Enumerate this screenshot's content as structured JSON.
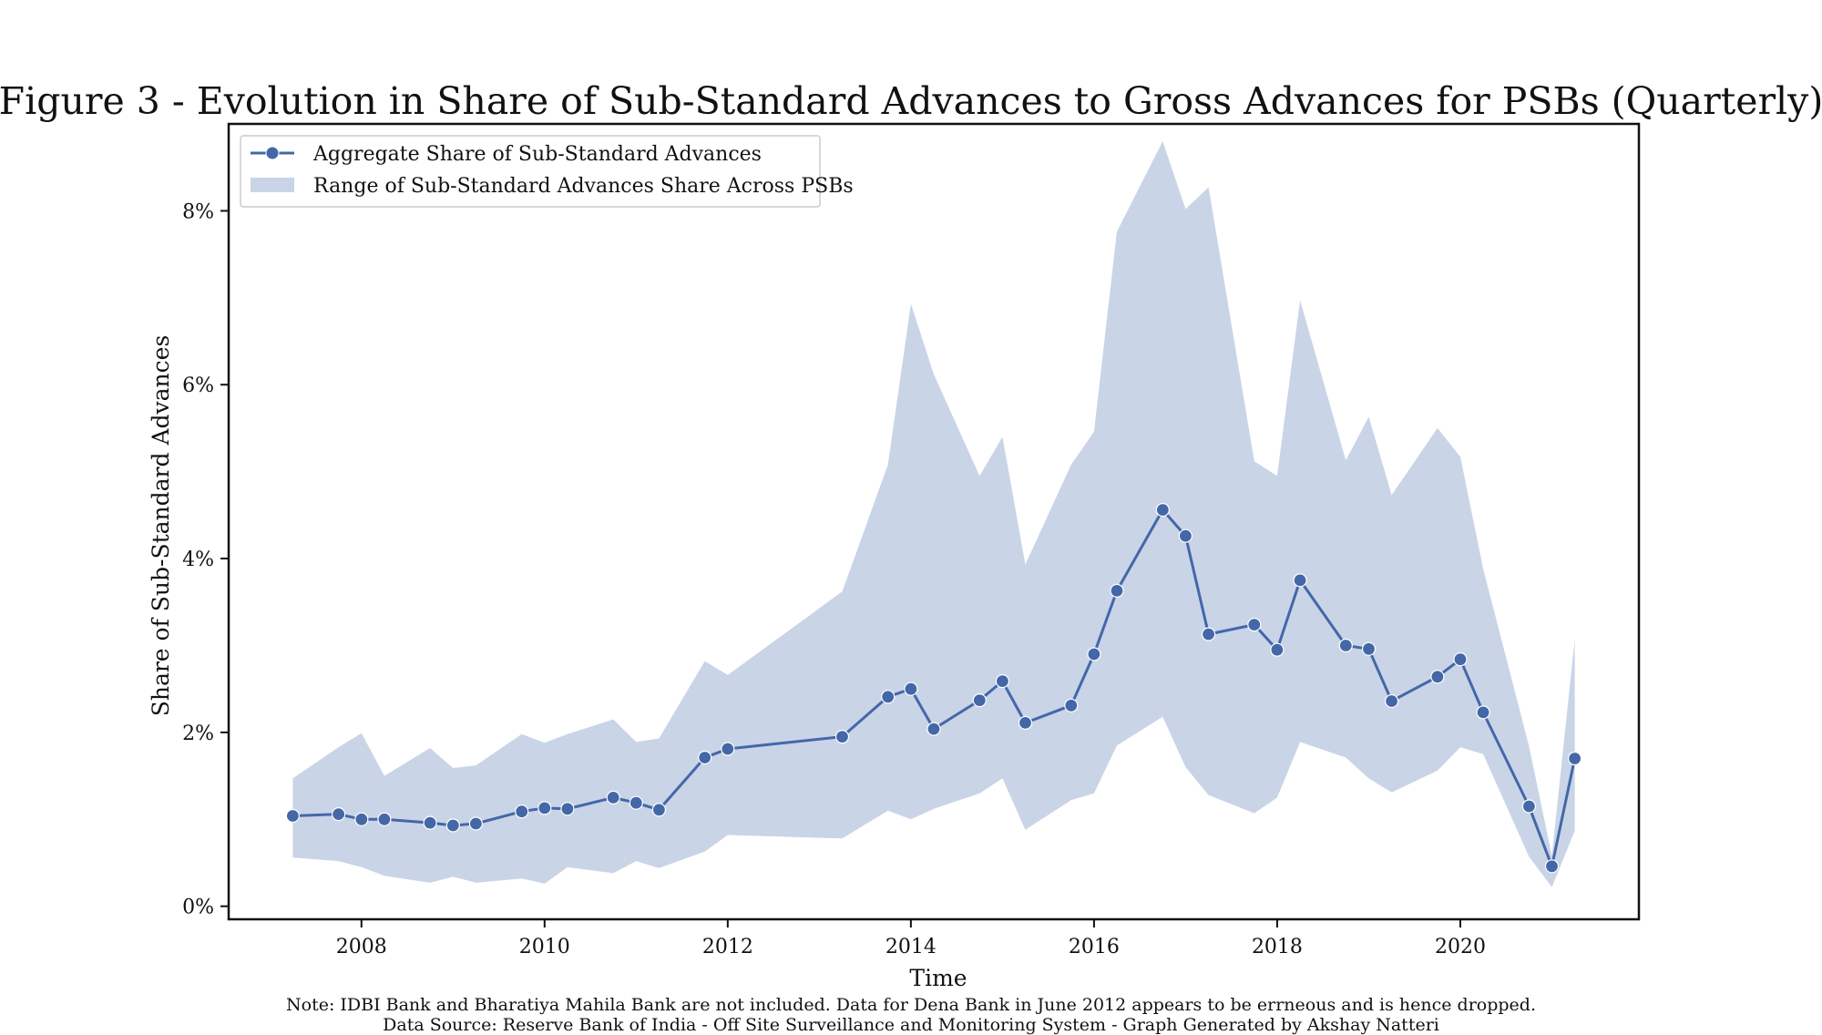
{
  "chart_data": {
    "type": "line",
    "title": "Figure 3 - Evolution in Share of Sub-Standard Advances to Gross Advances for PSBs (Quarterly)",
    "xlabel": "Time",
    "ylabel": "Share of Sub-Standard Advances",
    "xlim": [
      2006.55,
      2021.95
    ],
    "ylim": [
      -0.15,
      9.0
    ],
    "xticks": [
      "2008",
      "2010",
      "2012",
      "2014",
      "2016",
      "2018",
      "2020"
    ],
    "yticks": [
      "0%",
      "2%",
      "4%",
      "6%",
      "8%"
    ],
    "legend_position": "top-left",
    "grid": false,
    "colors": {
      "line": "#4467a8",
      "band": "#c9d4e7",
      "axis": "#111111"
    },
    "series": [
      {
        "name": "Aggregate Share of Sub-Standard Advances",
        "x": [
          2007.25,
          2007.75,
          2008.0,
          2008.25,
          2008.75,
          2009.0,
          2009.25,
          2009.75,
          2010.0,
          2010.25,
          2010.75,
          2011.0,
          2011.25,
          2011.75,
          2012.0,
          2013.25,
          2013.75,
          2014.0,
          2014.25,
          2014.75,
          2015.0,
          2015.25,
          2015.75,
          2016.0,
          2016.25,
          2016.75,
          2017.0,
          2017.25,
          2017.75,
          2018.0,
          2018.25,
          2018.75,
          2019.0,
          2019.25,
          2019.75,
          2020.0,
          2020.25,
          2020.75,
          2021.0,
          2021.25
        ],
        "y": [
          1.04,
          1.06,
          1.0,
          1.0,
          0.96,
          0.93,
          0.95,
          1.09,
          1.13,
          1.12,
          1.25,
          1.19,
          1.11,
          1.71,
          1.81,
          1.95,
          2.41,
          2.5,
          2.04,
          2.37,
          2.59,
          2.11,
          2.31,
          2.9,
          3.63,
          4.56,
          4.26,
          3.13,
          3.24,
          2.95,
          3.75,
          3.0,
          2.96,
          2.36,
          2.64,
          2.84,
          2.23,
          1.15,
          0.46,
          1.7
        ]
      },
      {
        "name": "Range of Sub-Standard Advances Share Across PSBs",
        "x": [
          2007.25,
          2007.75,
          2008.0,
          2008.25,
          2008.75,
          2009.0,
          2009.25,
          2009.75,
          2010.0,
          2010.25,
          2010.75,
          2011.0,
          2011.25,
          2011.75,
          2012.0,
          2013.25,
          2013.75,
          2014.0,
          2014.25,
          2014.75,
          2015.0,
          2015.25,
          2015.75,
          2016.0,
          2016.25,
          2016.75,
          2017.0,
          2017.25,
          2017.75,
          2018.0,
          2018.25,
          2018.75,
          2019.0,
          2019.25,
          2019.75,
          2020.0,
          2020.25,
          2020.75,
          2021.0,
          2021.25
        ],
        "low": [
          0.56,
          0.52,
          0.45,
          0.35,
          0.27,
          0.34,
          0.27,
          0.32,
          0.26,
          0.45,
          0.38,
          0.52,
          0.44,
          0.63,
          0.82,
          0.78,
          1.1,
          1.0,
          1.12,
          1.3,
          1.47,
          0.88,
          1.22,
          1.3,
          1.85,
          2.18,
          1.6,
          1.28,
          1.07,
          1.25,
          1.89,
          1.71,
          1.47,
          1.31,
          1.56,
          1.83,
          1.75,
          0.57,
          0.22,
          0.87
        ],
        "high": [
          1.47,
          1.83,
          1.99,
          1.5,
          1.82,
          1.59,
          1.62,
          1.98,
          1.88,
          1.98,
          2.15,
          1.89,
          1.93,
          2.82,
          2.66,
          3.62,
          5.08,
          6.93,
          6.12,
          4.95,
          5.4,
          3.93,
          5.08,
          5.46,
          7.76,
          8.8,
          8.02,
          8.27,
          5.12,
          4.95,
          6.97,
          5.13,
          5.63,
          4.73,
          5.5,
          5.17,
          3.88,
          1.84,
          0.58,
          3.07
        ]
      }
    ]
  },
  "footnotes": {
    "note": "Note: IDBI Bank and Bharatiya Mahila Bank are not included. Data for Dena Bank in June 2012 appears to be errneous and is hence dropped.",
    "source": "Data Source: Reserve Bank of India - Off Site Surveillance and Monitoring System - Graph Generated by Akshay Natteri"
  }
}
